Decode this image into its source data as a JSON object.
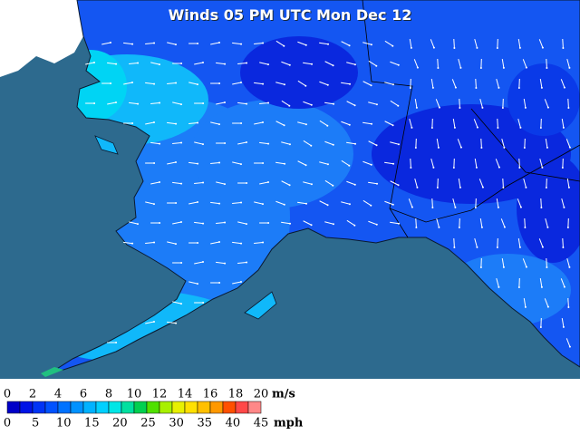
{
  "title": "Winds 05 PM UTC Mon Dec 12",
  "legend": {
    "ms_labels": [
      0,
      2,
      4,
      6,
      8,
      10,
      12,
      14,
      16,
      18,
      20
    ],
    "ms_unit": "m/s",
    "mph_labels": [
      0,
      5,
      10,
      15,
      20,
      25,
      30,
      35,
      40,
      45
    ],
    "mph_unit": "mph",
    "colors": [
      "#0000c8",
      "#0014e6",
      "#0034f5",
      "#0052ff",
      "#0072ff",
      "#0092ff",
      "#00b2ff",
      "#00d0ff",
      "#00e6e6",
      "#00e0a0",
      "#00d050",
      "#50e000",
      "#a8f000",
      "#e8f000",
      "#ffe000",
      "#ffc000",
      "#ff9800",
      "#ff5000",
      "#ff4848",
      "#ff8888"
    ]
  }
}
